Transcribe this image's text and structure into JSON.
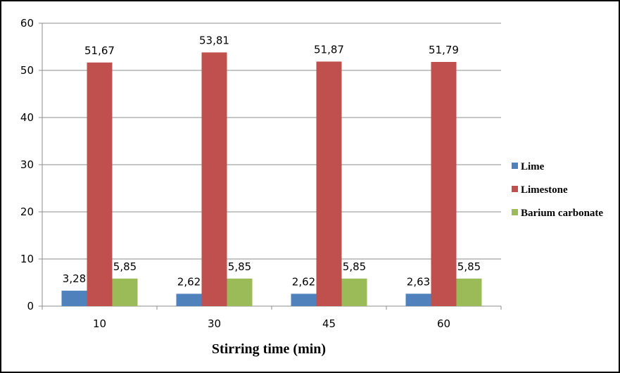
{
  "chart_data": {
    "type": "bar",
    "categories": [
      "10",
      "30",
      "45",
      "60"
    ],
    "series": [
      {
        "name": "Lime",
        "values": [
          3.28,
          2.62,
          2.62,
          2.63
        ],
        "labels": [
          "3,28",
          "2,62",
          "2,62",
          "2,63"
        ],
        "color": "#4F81BD"
      },
      {
        "name": "Limestone",
        "values": [
          51.67,
          53.81,
          51.87,
          51.79
        ],
        "labels": [
          "51,67",
          "53,81",
          "51,87",
          "51,79"
        ],
        "color": "#C0504D"
      },
      {
        "name": "Barium carbonate",
        "values": [
          5.85,
          5.85,
          5.85,
          5.85
        ],
        "labels": [
          "5,85",
          "5,85",
          "5,85",
          "5,85"
        ],
        "color": "#9BBB59"
      }
    ],
    "xlabel": "Stirring time (min)",
    "ylabel": "",
    "ylim": [
      0,
      60
    ],
    "yticks": [
      0,
      10,
      20,
      30,
      40,
      50,
      60
    ],
    "grid": true,
    "legend": "right"
  }
}
